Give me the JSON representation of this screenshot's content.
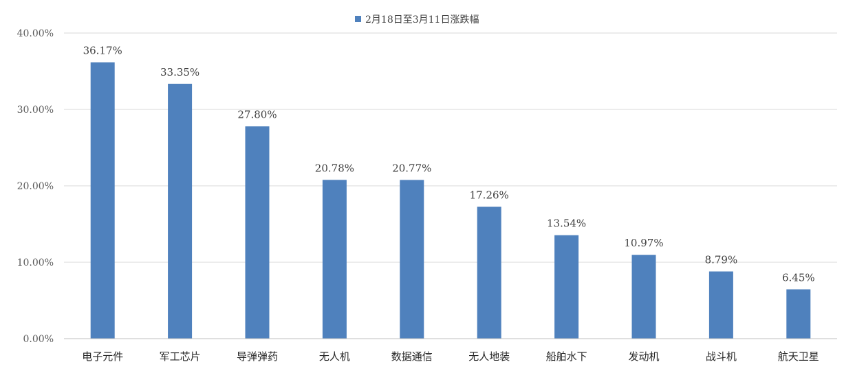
{
  "chart_data": {
    "type": "bar",
    "categories": [
      "电子元件",
      "军工芯片",
      "导弹弹药",
      "无人机",
      "数据通信",
      "无人地装",
      "船舶水下",
      "发动机",
      "战斗机",
      "航天卫星"
    ],
    "series": [
      {
        "name": "2月18日至3月11日涨跌幅",
        "values": [
          36.17,
          33.35,
          27.8,
          20.78,
          20.77,
          17.26,
          13.54,
          10.97,
          8.79,
          6.45
        ],
        "labels": [
          "36.17%",
          "33.35%",
          "27.80%",
          "20.78%",
          "20.77%",
          "17.26%",
          "13.54%",
          "10.97%",
          "8.79%",
          "6.45%"
        ],
        "color": "#4f81bd"
      }
    ],
    "y_ticks": [
      "0.00%",
      "10.00%",
      "20.00%",
      "30.00%",
      "40.00%"
    ],
    "y_tick_values": [
      0,
      10,
      20,
      30,
      40
    ],
    "ylim": [
      0,
      40
    ],
    "unit": "%",
    "grid": true,
    "legend_position": "top-center",
    "title": "",
    "xlabel": "",
    "ylabel": ""
  }
}
